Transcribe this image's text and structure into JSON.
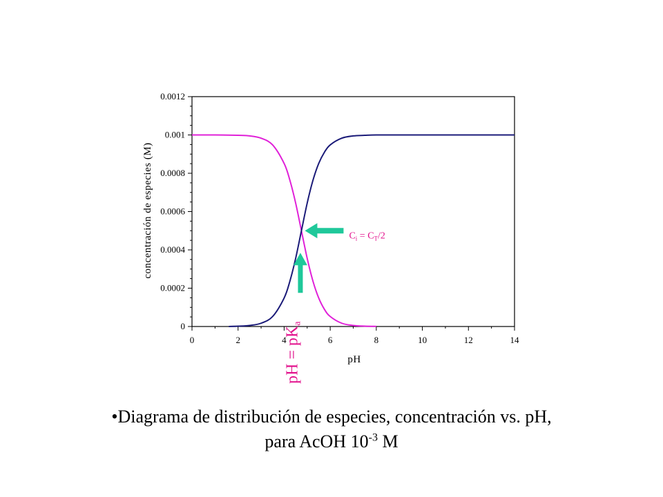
{
  "chart_data": {
    "type": "line",
    "xlabel": "pH",
    "ylabel": "concentración de especies (M)",
    "xlim": [
      0,
      14
    ],
    "ylim": [
      0,
      0.0012
    ],
    "x_ticks": [
      0,
      2,
      4,
      6,
      8,
      10,
      12,
      14
    ],
    "y_ticks": [
      0,
      0.0002,
      0.0004,
      0.0006,
      0.0008,
      0.001,
      0.0012
    ],
    "x_tick_labels": [
      "0",
      "2",
      "4",
      "6",
      "8",
      "10",
      "12",
      "14"
    ],
    "y_tick_labels": [
      "0",
      "0.0002",
      "0.0004",
      "0.0006",
      "0.0008",
      "0.001",
      "0.0012"
    ],
    "grid": false,
    "series": [
      {
        "color": "#e020d8",
        "x": [
          0,
          1,
          2,
          2.5,
          3,
          3.5,
          4,
          4.25,
          4.5,
          4.75,
          5,
          5.25,
          5.5,
          5.75,
          6,
          6.5,
          7,
          7.5,
          8
        ],
        "values": [
          0.001,
          0.001,
          0.000998,
          0.000995,
          0.000983,
          0.000948,
          0.000851,
          0.000763,
          0.000644,
          0.0005,
          0.000356,
          0.000237,
          0.000149,
          8.95e-05,
          5.23e-05,
          1.71e-05,
          5.5e-06,
          1.7e-06,
          6e-07
        ]
      },
      {
        "color": "#1a1a78",
        "x": [
          1.6,
          2,
          2.5,
          3,
          3.5,
          4,
          4.25,
          4.5,
          4.75,
          5,
          5.25,
          5.5,
          5.75,
          6,
          6.5,
          7,
          7.5,
          8,
          9,
          10,
          12,
          14
        ],
        "values": [
          0,
          1.7e-06,
          5.5e-06,
          1.71e-05,
          5.23e-05,
          0.000149,
          0.000237,
          0.000356,
          0.0005,
          0.000644,
          0.000763,
          0.000851,
          0.00091,
          0.000948,
          0.000983,
          0.000995,
          0.000998,
          0.001,
          0.001,
          0.001,
          0.001,
          0.001
        ]
      }
    ],
    "annotations": [
      {
        "text": "C",
        "sub": "i",
        "text2": " = C",
        "sub2": "T",
        "text3": "/2",
        "x": 4.75,
        "y": 0.0005,
        "arrow": "from-right"
      },
      {
        "text": "pH = pK",
        "sub": "a",
        "x": 4.75,
        "y": 0.0005,
        "arrow": "from-below"
      }
    ],
    "arrow_color": "#1fc89a"
  },
  "caption": {
    "line1": "•Diagrama de distribución de especies, concentración vs. pH,",
    "line2_prefix": "para AcOH 10",
    "line2_sup": "-3",
    "line2_suffix": " M"
  }
}
